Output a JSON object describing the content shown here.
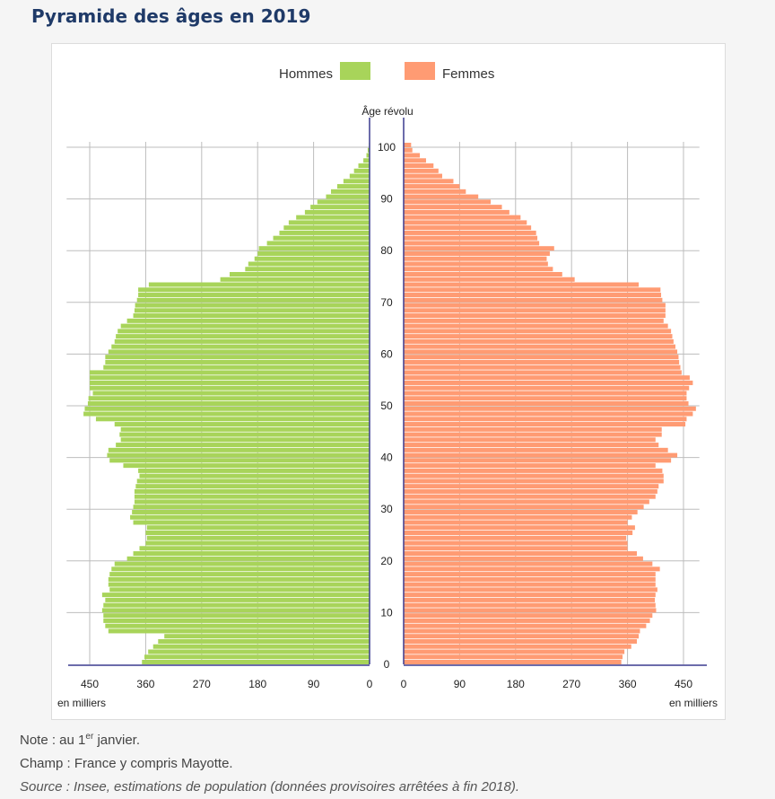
{
  "page": {
    "title": "Pyramide des âges en 2019"
  },
  "notes": {
    "note_prefix": "Note : au 1",
    "note_sup": "er",
    "note_suffix": " janvier.",
    "champ": "Champ : France y compris Mayotte.",
    "source": "Source : Insee, estimations de population (données provisoires arrêtées à fin 2018)."
  },
  "chart_data": {
    "type": "bar",
    "orientation": "horizontal-pyramid",
    "y_title": "Âge révolu",
    "x_unit_label": "en milliers",
    "age_ticks": [
      0,
      10,
      20,
      30,
      40,
      50,
      60,
      70,
      80,
      90,
      100
    ],
    "x_ticks": [
      0,
      90,
      180,
      270,
      360,
      450
    ],
    "xlim": [
      0,
      490
    ],
    "legend_position": "top",
    "series": [
      {
        "name": "Hommes",
        "color": "#a8d45a",
        "side": "left",
        "ages": [
          0,
          1,
          2,
          3,
          4,
          5,
          6,
          7,
          8,
          9,
          10,
          11,
          12,
          13,
          14,
          15,
          16,
          17,
          18,
          19,
          20,
          21,
          22,
          23,
          24,
          25,
          26,
          27,
          28,
          29,
          30,
          31,
          32,
          33,
          34,
          35,
          36,
          37,
          38,
          39,
          40,
          41,
          42,
          43,
          44,
          45,
          46,
          47,
          48,
          49,
          50,
          51,
          52,
          53,
          54,
          55,
          56,
          57,
          58,
          59,
          60,
          61,
          62,
          63,
          64,
          65,
          66,
          67,
          68,
          69,
          70,
          71,
          72,
          73,
          74,
          75,
          76,
          77,
          78,
          79,
          80,
          81,
          82,
          83,
          84,
          85,
          86,
          87,
          88,
          89,
          90,
          91,
          92,
          93,
          94,
          95,
          96,
          97,
          98,
          99,
          100
        ],
        "values": [
          366,
          362,
          356,
          348,
          340,
          330,
          420,
          425,
          428,
          428,
          430,
          428,
          425,
          430,
          418,
          420,
          420,
          418,
          415,
          410,
          390,
          380,
          370,
          360,
          358,
          360,
          358,
          380,
          385,
          382,
          380,
          378,
          378,
          378,
          376,
          374,
          370,
          372,
          396,
          418,
          422,
          420,
          408,
          400,
          402,
          400,
          410,
          440,
          460,
          458,
          453,
          452,
          445,
          450,
          450,
          450,
          450,
          428,
          425,
          425,
          420,
          415,
          410,
          408,
          405,
          400,
          390,
          380,
          378,
          377,
          374,
          372,
          372,
          355,
          240,
          225,
          200,
          195,
          185,
          180,
          178,
          165,
          155,
          145,
          138,
          130,
          118,
          104,
          95,
          84,
          70,
          62,
          52,
          42,
          32,
          25,
          18,
          10,
          5,
          3,
          1
        ]
      },
      {
        "name": "Femmes",
        "color": "#ff9b73",
        "side": "right",
        "ages": [
          0,
          1,
          2,
          3,
          4,
          5,
          6,
          7,
          8,
          9,
          10,
          11,
          12,
          13,
          14,
          15,
          16,
          17,
          18,
          19,
          20,
          21,
          22,
          23,
          24,
          25,
          26,
          27,
          28,
          29,
          30,
          31,
          32,
          33,
          34,
          35,
          36,
          37,
          38,
          39,
          40,
          41,
          42,
          43,
          44,
          45,
          46,
          47,
          48,
          49,
          50,
          51,
          52,
          53,
          54,
          55,
          56,
          57,
          58,
          59,
          60,
          61,
          62,
          63,
          64,
          65,
          66,
          67,
          68,
          69,
          70,
          71,
          72,
          73,
          74,
          75,
          76,
          77,
          78,
          79,
          80,
          81,
          82,
          83,
          84,
          85,
          86,
          87,
          88,
          89,
          90,
          91,
          92,
          93,
          94,
          95,
          96,
          97,
          98,
          99,
          100
        ],
        "values": [
          350,
          352,
          355,
          366,
          375,
          378,
          380,
          390,
          396,
          400,
          406,
          405,
          404,
          405,
          408,
          405,
          405,
          405,
          412,
          400,
          385,
          375,
          360,
          360,
          358,
          368,
          372,
          360,
          367,
          376,
          386,
          395,
          405,
          408,
          410,
          418,
          418,
          416,
          405,
          430,
          440,
          425,
          410,
          405,
          415,
          415,
          453,
          455,
          465,
          470,
          458,
          455,
          455,
          459,
          465,
          460,
          447,
          445,
          443,
          442,
          440,
          437,
          434,
          432,
          430,
          425,
          418,
          421,
          421,
          421,
          416,
          414,
          413,
          378,
          275,
          255,
          240,
          232,
          230,
          235,
          242,
          218,
          215,
          213,
          205,
          198,
          188,
          170,
          158,
          140,
          120,
          100,
          90,
          80,
          62,
          56,
          48,
          36,
          26,
          14,
          12
        ]
      }
    ]
  }
}
